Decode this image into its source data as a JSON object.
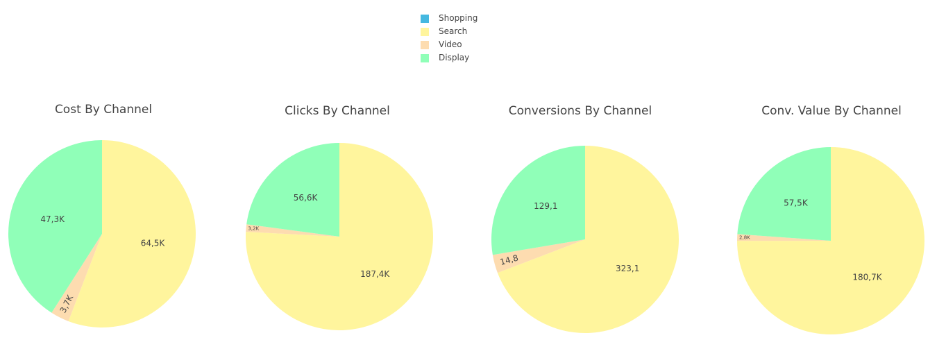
{
  "legend": [
    {
      "name": "Shopping",
      "color": "#45B8E0"
    },
    {
      "name": "Search",
      "color": "#FFF59D"
    },
    {
      "name": "Video",
      "color": "#FDDCB0"
    },
    {
      "name": "Display",
      "color": "#90FFB8"
    }
  ],
  "chart_data": [
    {
      "type": "pie",
      "title": "Cost By Channel",
      "labels": [
        "Shopping",
        "Search",
        "Video",
        "Display"
      ],
      "values": [
        0,
        64.5,
        3.7,
        47.3
      ],
      "text": [
        "",
        "64,5K",
        "3,7K",
        "47,3K"
      ]
    },
    {
      "type": "pie",
      "title": "Clicks By Channel",
      "labels": [
        "Shopping",
        "Search",
        "Video",
        "Display"
      ],
      "values": [
        0,
        187.4,
        3.2,
        56.6
      ],
      "text": [
        "",
        "187,4K",
        "3,2K",
        "56,6K"
      ]
    },
    {
      "type": "pie",
      "title": "Conversions By Channel",
      "labels": [
        "Shopping",
        "Search",
        "Video",
        "Display"
      ],
      "values": [
        0,
        323.1,
        14.8,
        129.1
      ],
      "text": [
        "",
        "323,1",
        "14,8",
        "129,1"
      ]
    },
    {
      "type": "pie",
      "title": "Conv. Value By Channel",
      "labels": [
        "Shopping",
        "Search",
        "Video",
        "Display"
      ],
      "values": [
        0,
        180.7,
        2.8,
        57.5
      ],
      "text": [
        "",
        "180,7K",
        "2,8K",
        "57,5K"
      ]
    }
  ]
}
